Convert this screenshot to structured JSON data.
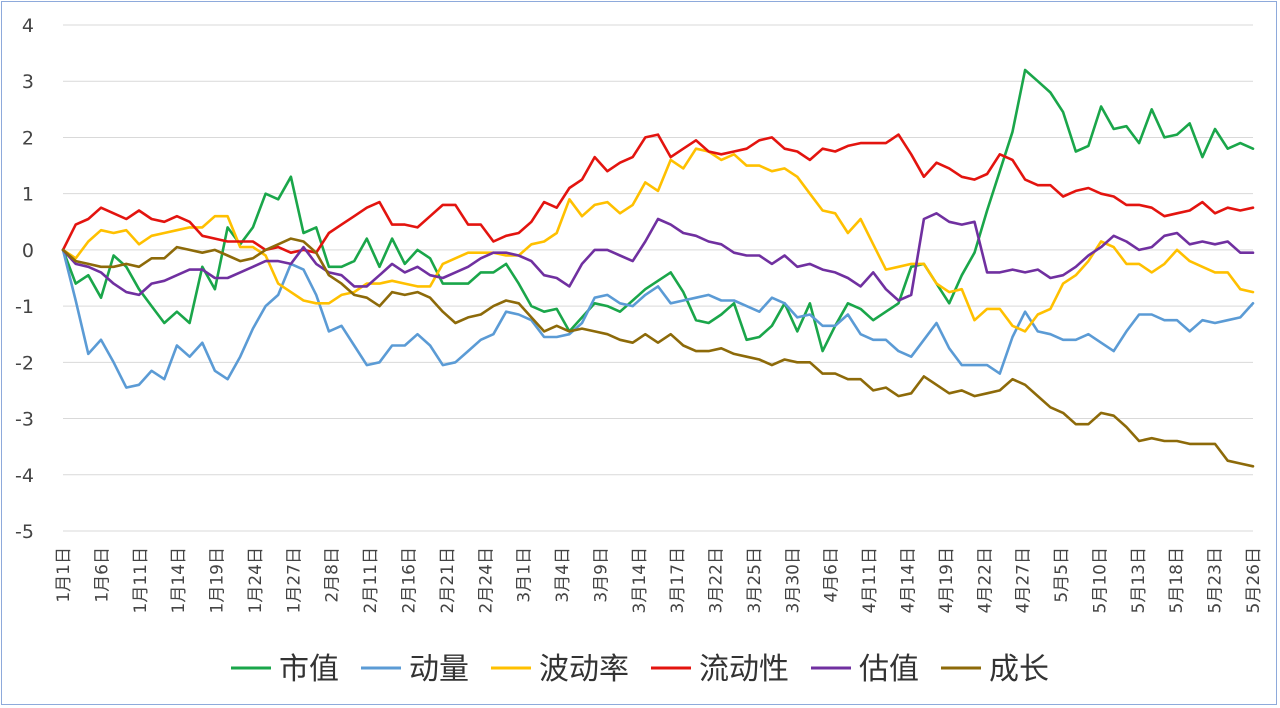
{
  "chart_data": {
    "type": "line",
    "title": "",
    "xlabel": "",
    "ylabel": "",
    "ylim": [
      -5,
      4
    ],
    "yticks": [
      4,
      3,
      2,
      1,
      0,
      -1,
      -2,
      -3,
      -4,
      -5
    ],
    "grid": "horizontal",
    "legend_position": "bottom",
    "x_tick_labels": [
      "1月1日",
      "1月6日",
      "1月11日",
      "1月14日",
      "1月19日",
      "1月24日",
      "1月27日",
      "2月8日",
      "2月11日",
      "2月16日",
      "2月21日",
      "2月24日",
      "3月1日",
      "3月4日",
      "3月9日",
      "3月14日",
      "3月17日",
      "3月22日",
      "3月25日",
      "3月30日",
      "4月6日",
      "4月11日",
      "4月14日",
      "4月19日",
      "4月22日",
      "4月27日",
      "5月5日",
      "5月10日",
      "5月13日",
      "5月18日",
      "5月23日",
      "5月26日"
    ],
    "series": [
      {
        "name": "市值",
        "color": "#1aa64a",
        "values": [
          0.0,
          -0.6,
          -0.45,
          -0.85,
          -0.1,
          -0.3,
          -0.7,
          -1.0,
          -1.3,
          -1.1,
          -1.3,
          -0.3,
          -0.7,
          0.4,
          0.1,
          0.4,
          1.0,
          0.9,
          1.3,
          0.3,
          0.4,
          -0.3,
          -0.3,
          -0.2,
          0.2,
          -0.3,
          0.2,
          -0.25,
          0.0,
          -0.15,
          -0.6,
          -0.6,
          -0.6,
          -0.4,
          -0.4,
          -0.25,
          -0.6,
          -1.0,
          -1.1,
          -1.05,
          -1.45,
          -1.2,
          -0.95,
          -1.0,
          -1.1,
          -0.9,
          -0.7,
          -0.55,
          -0.4,
          -0.75,
          -1.25,
          -1.3,
          -1.15,
          -0.95,
          -1.6,
          -1.55,
          -1.35,
          -0.95,
          -1.45,
          -0.95,
          -1.8,
          -1.35,
          -0.95,
          -1.05,
          -1.25,
          -1.1,
          -0.95,
          -0.3,
          -0.25,
          -0.6,
          -0.95,
          -0.45,
          -0.05,
          0.7,
          1.4,
          2.1,
          3.2,
          3.0,
          2.8,
          2.45,
          1.75,
          1.85,
          2.55,
          2.15,
          2.2,
          1.9,
          2.5,
          2.0,
          2.05,
          2.25,
          1.65,
          2.15,
          1.8,
          1.9,
          1.8
        ]
      },
      {
        "name": "动量",
        "color": "#5b9bd5",
        "values": [
          0.0,
          -0.9,
          -1.85,
          -1.6,
          -2.0,
          -2.45,
          -2.4,
          -2.15,
          -2.3,
          -1.7,
          -1.9,
          -1.65,
          -2.15,
          -2.3,
          -1.9,
          -1.4,
          -1.0,
          -0.8,
          -0.25,
          -0.35,
          -0.8,
          -1.45,
          -1.35,
          -1.7,
          -2.05,
          -2.0,
          -1.7,
          -1.7,
          -1.5,
          -1.7,
          -2.05,
          -2.0,
          -1.8,
          -1.6,
          -1.5,
          -1.1,
          -1.15,
          -1.25,
          -1.55,
          -1.55,
          -1.5,
          -1.3,
          -0.85,
          -0.8,
          -0.95,
          -1.0,
          -0.8,
          -0.65,
          -0.95,
          -0.9,
          -0.85,
          -0.8,
          -0.9,
          -0.9,
          -1.0,
          -1.1,
          -0.85,
          -0.95,
          -1.2,
          -1.15,
          -1.35,
          -1.35,
          -1.15,
          -1.5,
          -1.6,
          -1.6,
          -1.8,
          -1.9,
          -1.6,
          -1.3,
          -1.75,
          -2.05,
          -2.05,
          -2.05,
          -2.2,
          -1.55,
          -1.1,
          -1.45,
          -1.5,
          -1.6,
          -1.6,
          -1.5,
          -1.65,
          -1.8,
          -1.45,
          -1.15,
          -1.15,
          -1.25,
          -1.25,
          -1.45,
          -1.25,
          -1.3,
          -1.25,
          -1.2,
          -0.95
        ]
      },
      {
        "name": "波动率",
        "color": "#ffc000",
        "values": [
          0.0,
          -0.15,
          0.15,
          0.35,
          0.3,
          0.35,
          0.1,
          0.25,
          0.3,
          0.35,
          0.4,
          0.4,
          0.6,
          0.6,
          0.05,
          0.05,
          -0.1,
          -0.6,
          -0.75,
          -0.9,
          -0.95,
          -0.95,
          -0.8,
          -0.75,
          -0.6,
          -0.6,
          -0.55,
          -0.6,
          -0.65,
          -0.65,
          -0.25,
          -0.15,
          -0.05,
          -0.05,
          -0.05,
          -0.1,
          -0.1,
          0.1,
          0.15,
          0.3,
          0.9,
          0.6,
          0.8,
          0.85,
          0.65,
          0.8,
          1.2,
          1.05,
          1.6,
          1.45,
          1.8,
          1.75,
          1.6,
          1.7,
          1.5,
          1.5,
          1.4,
          1.45,
          1.3,
          1.0,
          0.7,
          0.65,
          0.3,
          0.55,
          0.1,
          -0.35,
          -0.3,
          -0.25,
          -0.25,
          -0.6,
          -0.75,
          -0.7,
          -1.25,
          -1.05,
          -1.05,
          -1.35,
          -1.45,
          -1.15,
          -1.05,
          -0.6,
          -0.45,
          -0.2,
          0.15,
          0.05,
          -0.25,
          -0.25,
          -0.4,
          -0.25,
          0.0,
          -0.2,
          -0.3,
          -0.4,
          -0.4,
          -0.7,
          -0.75
        ]
      },
      {
        "name": "流动性",
        "color": "#e3140f",
        "values": [
          0.0,
          0.45,
          0.55,
          0.75,
          0.65,
          0.55,
          0.7,
          0.55,
          0.5,
          0.6,
          0.5,
          0.25,
          0.2,
          0.15,
          0.15,
          0.15,
          0.0,
          0.05,
          -0.05,
          0.0,
          -0.05,
          0.3,
          0.45,
          0.6,
          0.75,
          0.85,
          0.45,
          0.45,
          0.4,
          0.6,
          0.8,
          0.8,
          0.45,
          0.45,
          0.15,
          0.25,
          0.3,
          0.5,
          0.85,
          0.75,
          1.1,
          1.25,
          1.65,
          1.4,
          1.55,
          1.65,
          2.0,
          2.05,
          1.65,
          1.8,
          1.95,
          1.75,
          1.7,
          1.75,
          1.8,
          1.95,
          2.0,
          1.8,
          1.75,
          1.6,
          1.8,
          1.75,
          1.85,
          1.9,
          1.9,
          1.9,
          2.05,
          1.7,
          1.3,
          1.55,
          1.45,
          1.3,
          1.25,
          1.35,
          1.7,
          1.6,
          1.25,
          1.15,
          1.15,
          0.95,
          1.05,
          1.1,
          1.0,
          0.95,
          0.8,
          0.8,
          0.75,
          0.6,
          0.65,
          0.7,
          0.85,
          0.65,
          0.75,
          0.7,
          0.75
        ]
      },
      {
        "name": "估值",
        "color": "#7030a0",
        "values": [
          0.0,
          -0.25,
          -0.3,
          -0.4,
          -0.6,
          -0.75,
          -0.8,
          -0.6,
          -0.55,
          -0.45,
          -0.35,
          -0.35,
          -0.5,
          -0.5,
          -0.4,
          -0.3,
          -0.2,
          -0.2,
          -0.25,
          0.05,
          -0.25,
          -0.4,
          -0.45,
          -0.65,
          -0.65,
          -0.45,
          -0.25,
          -0.4,
          -0.3,
          -0.45,
          -0.5,
          -0.4,
          -0.3,
          -0.15,
          -0.05,
          -0.05,
          -0.1,
          -0.2,
          -0.45,
          -0.5,
          -0.65,
          -0.25,
          0.0,
          0.0,
          -0.1,
          -0.2,
          0.15,
          0.55,
          0.45,
          0.3,
          0.25,
          0.15,
          0.1,
          -0.05,
          -0.1,
          -0.1,
          -0.25,
          -0.1,
          -0.3,
          -0.25,
          -0.35,
          -0.4,
          -0.5,
          -0.65,
          -0.4,
          -0.7,
          -0.9,
          -0.8,
          0.55,
          0.65,
          0.5,
          0.45,
          0.5,
          -0.4,
          -0.4,
          -0.35,
          -0.4,
          -0.35,
          -0.5,
          -0.45,
          -0.3,
          -0.1,
          0.05,
          0.25,
          0.15,
          0.0,
          0.05,
          0.25,
          0.3,
          0.1,
          0.15,
          0.1,
          0.15,
          -0.05,
          -0.05
        ]
      },
      {
        "name": "成长",
        "color": "#8d6a09",
        "values": [
          0.0,
          -0.2,
          -0.25,
          -0.3,
          -0.3,
          -0.25,
          -0.3,
          -0.15,
          -0.15,
          0.05,
          0.0,
          -0.05,
          0.0,
          -0.1,
          -0.2,
          -0.15,
          0.0,
          0.1,
          0.2,
          0.15,
          -0.05,
          -0.45,
          -0.6,
          -0.8,
          -0.85,
          -1.0,
          -0.75,
          -0.8,
          -0.75,
          -0.85,
          -1.1,
          -1.3,
          -1.2,
          -1.15,
          -1.0,
          -0.9,
          -0.95,
          -1.2,
          -1.45,
          -1.35,
          -1.45,
          -1.4,
          -1.45,
          -1.5,
          -1.6,
          -1.65,
          -1.5,
          -1.65,
          -1.5,
          -1.7,
          -1.8,
          -1.8,
          -1.75,
          -1.85,
          -1.9,
          -1.95,
          -2.05,
          -1.95,
          -2.0,
          -2.0,
          -2.2,
          -2.2,
          -2.3,
          -2.3,
          -2.5,
          -2.45,
          -2.6,
          -2.55,
          -2.25,
          -2.4,
          -2.55,
          -2.5,
          -2.6,
          -2.55,
          -2.5,
          -2.3,
          -2.4,
          -2.6,
          -2.8,
          -2.9,
          -3.1,
          -3.1,
          -2.9,
          -2.95,
          -3.15,
          -3.4,
          -3.35,
          -3.4,
          -3.4,
          -3.45,
          -3.45,
          -3.45,
          -3.75,
          -3.8,
          -3.85
        ]
      }
    ]
  }
}
